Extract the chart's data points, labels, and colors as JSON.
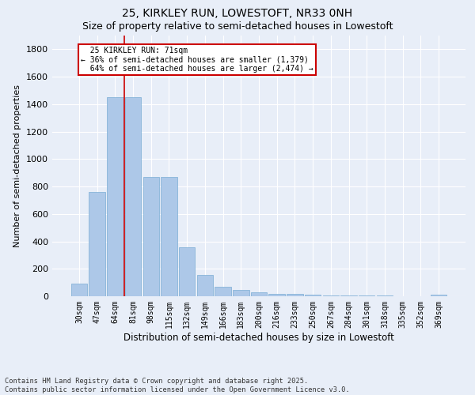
{
  "title_line1": "25, KIRKLEY RUN, LOWESTOFT, NR33 0NH",
  "title_line2": "Size of property relative to semi-detached houses in Lowestoft",
  "xlabel": "Distribution of semi-detached houses by size in Lowestoft",
  "ylabel": "Number of semi-detached properties",
  "categories": [
    "30sqm",
    "47sqm",
    "64sqm",
    "81sqm",
    "98sqm",
    "115sqm",
    "132sqm",
    "149sqm",
    "166sqm",
    "183sqm",
    "200sqm",
    "216sqm",
    "233sqm",
    "250sqm",
    "267sqm",
    "284sqm",
    "301sqm",
    "318sqm",
    "335sqm",
    "352sqm",
    "369sqm"
  ],
  "values": [
    90,
    760,
    1450,
    1450,
    870,
    870,
    355,
    155,
    70,
    45,
    30,
    20,
    15,
    10,
    5,
    5,
    5,
    3,
    2,
    2,
    10
  ],
  "bar_color": "#adc8e8",
  "bar_edgecolor": "#7aadd4",
  "red_line_x": 2.5,
  "annotation_text": "  25 KIRKLEY RUN: 71sqm\n← 36% of semi-detached houses are smaller (1,379)\n  64% of semi-detached houses are larger (2,474) →",
  "annotation_box_color": "#ffffff",
  "annotation_box_edgecolor": "#cc0000",
  "ylim": [
    0,
    1900
  ],
  "yticks": [
    0,
    200,
    400,
    600,
    800,
    1000,
    1200,
    1400,
    1600,
    1800
  ],
  "bg_color": "#e8eef8",
  "footnote": "Contains HM Land Registry data © Crown copyright and database right 2025.\nContains public sector information licensed under the Open Government Licence v3.0.",
  "red_line_color": "#cc0000",
  "title_fontsize": 10,
  "subtitle_fontsize": 9,
  "grid_color": "#ffffff",
  "footnote_fontsize": 6.2
}
